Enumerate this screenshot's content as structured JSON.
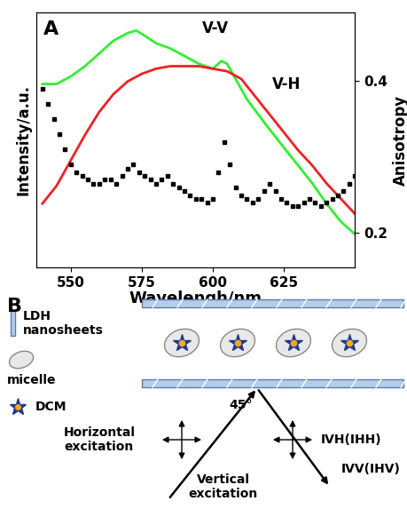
{
  "chart_data": {
    "type": "line",
    "panel_label": "A",
    "x_label": "Wavelengh/nm",
    "y_label": "Intensity/a.u.",
    "y2_label": "Anisotropy",
    "xlim": [
      538,
      650
    ],
    "xticks": [
      550,
      575,
      600,
      625
    ],
    "ylim": [
      0,
      1
    ],
    "yticks": [],
    "y2lim": [
      0.155,
      0.49
    ],
    "y2ticks": [
      0.2,
      0.4
    ],
    "series": [
      {
        "name": "V-V",
        "type": "line",
        "color": "#33ee33",
        "x": [
          540,
          545,
          550,
          555,
          560,
          565,
          570,
          573,
          576,
          580,
          585,
          590,
          595,
          600,
          603,
          605,
          608,
          612,
          618,
          625,
          630,
          635,
          640,
          645,
          650
        ],
        "values": [
          0.72,
          0.72,
          0.75,
          0.79,
          0.84,
          0.89,
          0.92,
          0.93,
          0.91,
          0.88,
          0.86,
          0.83,
          0.8,
          0.78,
          0.81,
          0.8,
          0.74,
          0.66,
          0.57,
          0.47,
          0.4,
          0.33,
          0.25,
          0.18,
          0.13
        ]
      },
      {
        "name": "V-H",
        "type": "line",
        "color": "#ee2222",
        "x": [
          540,
          545,
          550,
          555,
          560,
          565,
          570,
          575,
          580,
          585,
          590,
          595,
          600,
          605,
          610,
          615,
          620,
          625,
          630,
          635,
          640,
          645,
          650
        ],
        "values": [
          0.25,
          0.32,
          0.42,
          0.52,
          0.61,
          0.68,
          0.73,
          0.76,
          0.78,
          0.79,
          0.79,
          0.79,
          0.78,
          0.77,
          0.74,
          0.67,
          0.6,
          0.53,
          0.46,
          0.4,
          0.33,
          0.27,
          0.21
        ]
      },
      {
        "type": "scatter",
        "axis": "y2",
        "color": "#000000",
        "marker": "square",
        "x": [
          540,
          542,
          544,
          546,
          548,
          550,
          552,
          554,
          556,
          558,
          560,
          562,
          564,
          566,
          568,
          570,
          572,
          574,
          576,
          578,
          580,
          582,
          584,
          586,
          588,
          590,
          592,
          594,
          596,
          598,
          600,
          602,
          604,
          606,
          608,
          610,
          612,
          614,
          616,
          618,
          620,
          622,
          624,
          626,
          628,
          630,
          632,
          634,
          636,
          638,
          640,
          642,
          644,
          646,
          648,
          650
        ],
        "values": [
          0.39,
          0.37,
          0.35,
          0.33,
          0.31,
          0.29,
          0.28,
          0.275,
          0.27,
          0.265,
          0.265,
          0.27,
          0.27,
          0.265,
          0.275,
          0.285,
          0.29,
          0.28,
          0.275,
          0.27,
          0.265,
          0.27,
          0.275,
          0.265,
          0.26,
          0.255,
          0.25,
          0.245,
          0.245,
          0.24,
          0.245,
          0.28,
          0.32,
          0.29,
          0.26,
          0.25,
          0.245,
          0.24,
          0.245,
          0.255,
          0.265,
          0.255,
          0.245,
          0.24,
          0.235,
          0.235,
          0.24,
          0.245,
          0.24,
          0.235,
          0.24,
          0.245,
          0.25,
          0.255,
          0.265,
          0.275
        ]
      }
    ]
  },
  "diagram": {
    "panel_label": "B",
    "legend_labels": {
      "sheet": "LDH\nnanosheets",
      "micelle": "micelle",
      "dcm": "DCM"
    },
    "angle_label": "45°",
    "excitation_labels": [
      "Horizontal\nexcitation",
      "Vertical\nexcitation"
    ],
    "emission_labels": [
      "IVH(IHH)",
      "IVV(IHV)"
    ]
  }
}
